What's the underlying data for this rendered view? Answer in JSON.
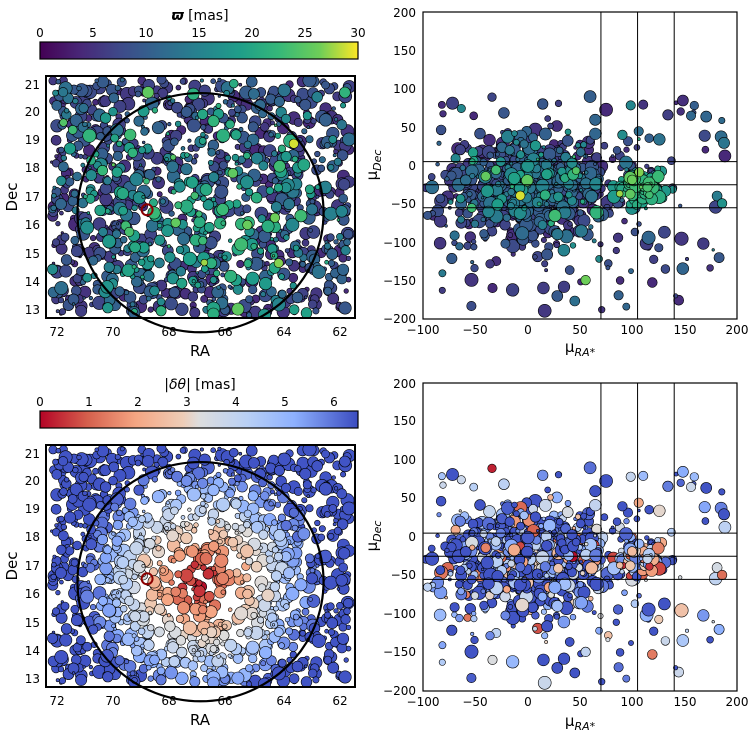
{
  "chart_data": [
    {
      "id": "sky_parallax",
      "type": "scatter",
      "xlabel": "RA",
      "ylabel": "Dec",
      "xlim": [
        72.5,
        61.5
      ],
      "ylim": [
        12.8,
        21.3
      ],
      "xticks": [
        "72",
        "70",
        "68",
        "66",
        "64",
        "62"
      ],
      "yticks": [
        "13",
        "14",
        "15",
        "16",
        "17",
        "18",
        "19",
        "20",
        "21"
      ],
      "circle": {
        "center_ra": 67.0,
        "center_dec": 16.5,
        "radius_deg": 4.2
      },
      "colorbar": {
        "label_symbol": "ϖ",
        "label_unit": "[mas]",
        "colormap": "viridis",
        "range": [
          0,
          30
        ],
        "ticks": [
          "0",
          "5",
          "10",
          "15",
          "20",
          "25",
          "30"
        ]
      },
      "points_shown": 1300
    },
    {
      "id": "pm_parallax",
      "type": "scatter",
      "xlabel": "μRA*",
      "ylabel": "μDec",
      "xlim": [
        -100,
        200
      ],
      "ylim": [
        -200,
        200
      ],
      "xticks": [
        "−100",
        "−50",
        "0",
        "50",
        "100",
        "150",
        "200"
      ],
      "yticks": [
        "−200",
        "−150",
        "−100",
        "−50",
        "0",
        "50",
        "100",
        "150",
        "200"
      ],
      "vlines": [
        70,
        105,
        140
      ],
      "hlines": [
        5,
        -25,
        -55
      ],
      "cluster_center": [
        110,
        -28
      ]
    },
    {
      "id": "sky_offset",
      "type": "scatter",
      "xlabel": "RA",
      "ylabel": "Dec",
      "xlim": [
        72.5,
        61.5
      ],
      "ylim": [
        12.8,
        21.3
      ],
      "xticks": [
        "72",
        "70",
        "68",
        "66",
        "64",
        "62"
      ],
      "yticks": [
        "13",
        "14",
        "15",
        "16",
        "17",
        "18",
        "19",
        "20",
        "21"
      ],
      "circle": {
        "center_ra": 67.0,
        "center_dec": 16.5,
        "radius_deg": 4.2
      },
      "colorbar": {
        "label_symbol": "|δθ|",
        "label_unit": "[mas]",
        "colormap": "coolwarm_r",
        "range": [
          0,
          6.5
        ],
        "ticks": [
          "0",
          "1",
          "2",
          "3",
          "4",
          "5",
          "6"
        ]
      },
      "points_shown": 1300
    },
    {
      "id": "pm_offset",
      "type": "scatter",
      "xlabel": "μRA*",
      "ylabel": "μDec",
      "xlim": [
        -100,
        200
      ],
      "ylim": [
        -200,
        200
      ],
      "xticks": [
        "−100",
        "−50",
        "0",
        "50",
        "100",
        "150",
        "200"
      ],
      "yticks": [
        "−200",
        "−150",
        "−100",
        "−50",
        "0",
        "50",
        "100",
        "150",
        "200"
      ],
      "vlines": [
        70,
        105,
        140
      ],
      "hlines": [
        5,
        -25,
        -55
      ],
      "cluster_center": [
        110,
        -28
      ]
    }
  ]
}
